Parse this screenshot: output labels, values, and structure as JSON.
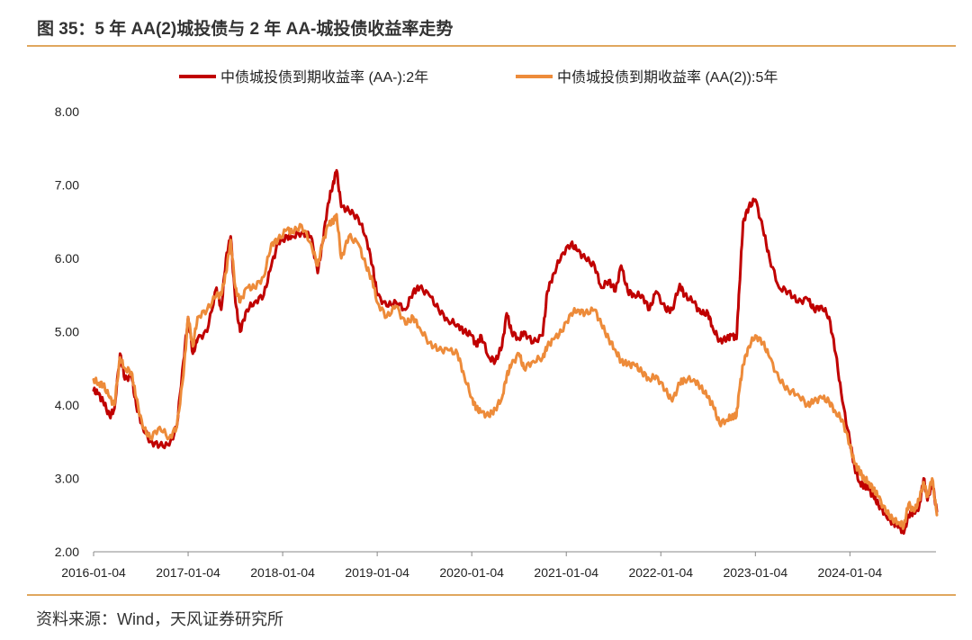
{
  "figure": {
    "title": "图 35：5 年 AA(2)城投债与 2 年 AA-城投债收益率走势",
    "source": "资料来源：Wind，天风证券研究所"
  },
  "colors": {
    "series_2y": "#C00000",
    "series_5y": "#ED8B3A",
    "rule": "#E0A75E",
    "axis": "#888888"
  },
  "chart_data": {
    "type": "line",
    "title": "",
    "xlabel": "",
    "ylabel": "",
    "ylim": [
      2.0,
      8.0
    ],
    "y_ticks": [
      "8.00",
      "7.00",
      "6.00",
      "5.00",
      "4.00",
      "3.00",
      "2.00"
    ],
    "x_ticks": [
      "2016-01-04",
      "2017-01-04",
      "2018-01-04",
      "2019-01-04",
      "2020-01-04",
      "2021-01-04",
      "2022-01-04",
      "2023-01-04",
      "2024-01-04"
    ],
    "x_range": [
      2016.0,
      2024.92
    ],
    "grid": false,
    "legend_position": "top-center",
    "series": [
      {
        "name": "中债城投债到期收益率 (AA-):2年",
        "color": "#C00000",
        "points": [
          [
            2016.0,
            4.2
          ],
          [
            2016.05,
            4.15
          ],
          [
            2016.1,
            4.05
          ],
          [
            2016.17,
            3.85
          ],
          [
            2016.22,
            3.95
          ],
          [
            2016.28,
            4.7
          ],
          [
            2016.33,
            4.35
          ],
          [
            2016.4,
            4.4
          ],
          [
            2016.45,
            4.0
          ],
          [
            2016.52,
            3.7
          ],
          [
            2016.6,
            3.5
          ],
          [
            2016.7,
            3.45
          ],
          [
            2016.8,
            3.45
          ],
          [
            2016.88,
            3.7
          ],
          [
            2016.95,
            4.6
          ],
          [
            2017.0,
            5.2
          ],
          [
            2017.05,
            4.7
          ],
          [
            2017.1,
            4.9
          ],
          [
            2017.2,
            5.0
          ],
          [
            2017.3,
            5.6
          ],
          [
            2017.35,
            5.3
          ],
          [
            2017.4,
            6.0
          ],
          [
            2017.45,
            6.3
          ],
          [
            2017.5,
            5.4
          ],
          [
            2017.55,
            5.0
          ],
          [
            2017.62,
            5.3
          ],
          [
            2017.7,
            5.4
          ],
          [
            2017.8,
            5.5
          ],
          [
            2017.88,
            5.9
          ],
          [
            2017.95,
            6.2
          ],
          [
            2018.05,
            6.3
          ],
          [
            2018.1,
            6.3
          ],
          [
            2018.2,
            6.35
          ],
          [
            2018.3,
            6.3
          ],
          [
            2018.37,
            5.8
          ],
          [
            2018.42,
            6.2
          ],
          [
            2018.48,
            6.75
          ],
          [
            2018.53,
            7.0
          ],
          [
            2018.57,
            7.2
          ],
          [
            2018.62,
            6.7
          ],
          [
            2018.7,
            6.65
          ],
          [
            2018.8,
            6.55
          ],
          [
            2018.88,
            6.3
          ],
          [
            2018.95,
            5.9
          ],
          [
            2019.0,
            5.5
          ],
          [
            2019.1,
            5.35
          ],
          [
            2019.2,
            5.4
          ],
          [
            2019.3,
            5.3
          ],
          [
            2019.38,
            5.55
          ],
          [
            2019.45,
            5.6
          ],
          [
            2019.55,
            5.5
          ],
          [
            2019.65,
            5.3
          ],
          [
            2019.75,
            5.15
          ],
          [
            2019.85,
            5.1
          ],
          [
            2019.92,
            5.0
          ],
          [
            2020.0,
            4.95
          ],
          [
            2020.05,
            4.8
          ],
          [
            2020.1,
            4.95
          ],
          [
            2020.18,
            4.65
          ],
          [
            2020.25,
            4.6
          ],
          [
            2020.32,
            4.8
          ],
          [
            2020.37,
            5.25
          ],
          [
            2020.42,
            5.0
          ],
          [
            2020.5,
            4.9
          ],
          [
            2020.55,
            5.0
          ],
          [
            2020.65,
            4.85
          ],
          [
            2020.75,
            4.95
          ],
          [
            2020.8,
            5.55
          ],
          [
            2020.87,
            5.8
          ],
          [
            2020.95,
            6.05
          ],
          [
            2021.05,
            6.2
          ],
          [
            2021.12,
            6.1
          ],
          [
            2021.2,
            6.0
          ],
          [
            2021.3,
            5.9
          ],
          [
            2021.37,
            5.6
          ],
          [
            2021.45,
            5.7
          ],
          [
            2021.52,
            5.55
          ],
          [
            2021.58,
            5.9
          ],
          [
            2021.65,
            5.55
          ],
          [
            2021.72,
            5.5
          ],
          [
            2021.8,
            5.5
          ],
          [
            2021.88,
            5.3
          ],
          [
            2021.95,
            5.55
          ],
          [
            2022.05,
            5.3
          ],
          [
            2022.12,
            5.3
          ],
          [
            2022.2,
            5.65
          ],
          [
            2022.25,
            5.5
          ],
          [
            2022.35,
            5.4
          ],
          [
            2022.42,
            5.25
          ],
          [
            2022.5,
            5.25
          ],
          [
            2022.55,
            5.05
          ],
          [
            2022.62,
            4.88
          ],
          [
            2022.7,
            4.9
          ],
          [
            2022.75,
            4.95
          ],
          [
            2022.8,
            4.9
          ],
          [
            2022.83,
            5.6
          ],
          [
            2022.87,
            6.5
          ],
          [
            2022.93,
            6.7
          ],
          [
            2023.0,
            6.8
          ],
          [
            2023.08,
            6.4
          ],
          [
            2023.15,
            6.0
          ],
          [
            2023.25,
            5.6
          ],
          [
            2023.35,
            5.55
          ],
          [
            2023.45,
            5.4
          ],
          [
            2023.55,
            5.45
          ],
          [
            2023.62,
            5.3
          ],
          [
            2023.7,
            5.35
          ],
          [
            2023.78,
            5.2
          ],
          [
            2023.85,
            4.7
          ],
          [
            2023.92,
            4.05
          ],
          [
            2024.0,
            3.5
          ],
          [
            2024.05,
            3.15
          ],
          [
            2024.1,
            2.95
          ],
          [
            2024.15,
            2.9
          ],
          [
            2024.2,
            2.85
          ],
          [
            2024.25,
            2.75
          ],
          [
            2024.3,
            2.65
          ],
          [
            2024.38,
            2.5
          ],
          [
            2024.45,
            2.4
          ],
          [
            2024.52,
            2.35
          ],
          [
            2024.57,
            2.25
          ],
          [
            2024.62,
            2.5
          ],
          [
            2024.68,
            2.55
          ],
          [
            2024.73,
            2.6
          ],
          [
            2024.78,
            3.0
          ],
          [
            2024.82,
            2.7
          ],
          [
            2024.87,
            2.95
          ],
          [
            2024.92,
            2.55
          ]
        ]
      },
      {
        "name": "中债城投债到期收益率 (AA(2)):5年",
        "color": "#ED8B3A",
        "points": [
          [
            2016.0,
            4.35
          ],
          [
            2016.05,
            4.3
          ],
          [
            2016.1,
            4.28
          ],
          [
            2016.17,
            4.1
          ],
          [
            2016.22,
            4.0
          ],
          [
            2016.28,
            4.65
          ],
          [
            2016.33,
            4.5
          ],
          [
            2016.4,
            4.45
          ],
          [
            2016.45,
            4.1
          ],
          [
            2016.52,
            3.7
          ],
          [
            2016.6,
            3.55
          ],
          [
            2016.7,
            3.7
          ],
          [
            2016.8,
            3.55
          ],
          [
            2016.88,
            3.7
          ],
          [
            2016.95,
            4.4
          ],
          [
            2017.0,
            5.2
          ],
          [
            2017.05,
            4.8
          ],
          [
            2017.1,
            5.2
          ],
          [
            2017.2,
            5.3
          ],
          [
            2017.3,
            5.5
          ],
          [
            2017.35,
            5.5
          ],
          [
            2017.4,
            5.8
          ],
          [
            2017.45,
            6.25
          ],
          [
            2017.5,
            5.6
          ],
          [
            2017.55,
            5.4
          ],
          [
            2017.62,
            5.6
          ],
          [
            2017.7,
            5.6
          ],
          [
            2017.8,
            5.75
          ],
          [
            2017.88,
            6.2
          ],
          [
            2017.95,
            6.25
          ],
          [
            2018.05,
            6.4
          ],
          [
            2018.1,
            6.35
          ],
          [
            2018.2,
            6.45
          ],
          [
            2018.3,
            6.2
          ],
          [
            2018.37,
            5.9
          ],
          [
            2018.42,
            6.2
          ],
          [
            2018.48,
            6.45
          ],
          [
            2018.53,
            6.5
          ],
          [
            2018.57,
            6.6
          ],
          [
            2018.62,
            6.0
          ],
          [
            2018.7,
            6.3
          ],
          [
            2018.8,
            6.2
          ],
          [
            2018.88,
            5.9
          ],
          [
            2018.95,
            5.7
          ],
          [
            2019.0,
            5.4
          ],
          [
            2019.1,
            5.2
          ],
          [
            2019.2,
            5.35
          ],
          [
            2019.3,
            5.1
          ],
          [
            2019.38,
            5.2
          ],
          [
            2019.45,
            5.05
          ],
          [
            2019.55,
            4.85
          ],
          [
            2019.65,
            4.75
          ],
          [
            2019.75,
            4.75
          ],
          [
            2019.85,
            4.7
          ],
          [
            2019.92,
            4.4
          ],
          [
            2020.0,
            4.1
          ],
          [
            2020.05,
            3.95
          ],
          [
            2020.1,
            3.9
          ],
          [
            2020.18,
            3.85
          ],
          [
            2020.25,
            3.95
          ],
          [
            2020.32,
            4.1
          ],
          [
            2020.37,
            4.4
          ],
          [
            2020.42,
            4.55
          ],
          [
            2020.5,
            4.7
          ],
          [
            2020.55,
            4.5
          ],
          [
            2020.65,
            4.6
          ],
          [
            2020.75,
            4.65
          ],
          [
            2020.8,
            4.8
          ],
          [
            2020.87,
            4.9
          ],
          [
            2020.95,
            5.0
          ],
          [
            2021.05,
            5.25
          ],
          [
            2021.12,
            5.3
          ],
          [
            2021.2,
            5.25
          ],
          [
            2021.3,
            5.3
          ],
          [
            2021.37,
            5.1
          ],
          [
            2021.45,
            4.9
          ],
          [
            2021.52,
            4.75
          ],
          [
            2021.58,
            4.6
          ],
          [
            2021.65,
            4.55
          ],
          [
            2021.72,
            4.55
          ],
          [
            2021.8,
            4.45
          ],
          [
            2021.88,
            4.35
          ],
          [
            2021.95,
            4.4
          ],
          [
            2022.05,
            4.2
          ],
          [
            2022.12,
            4.05
          ],
          [
            2022.2,
            4.3
          ],
          [
            2022.25,
            4.35
          ],
          [
            2022.35,
            4.35
          ],
          [
            2022.42,
            4.25
          ],
          [
            2022.5,
            4.1
          ],
          [
            2022.55,
            4.0
          ],
          [
            2022.62,
            3.75
          ],
          [
            2022.7,
            3.8
          ],
          [
            2022.75,
            3.85
          ],
          [
            2022.8,
            3.85
          ],
          [
            2022.83,
            4.2
          ],
          [
            2022.87,
            4.55
          ],
          [
            2022.93,
            4.8
          ],
          [
            2023.0,
            4.95
          ],
          [
            2023.08,
            4.85
          ],
          [
            2023.15,
            4.65
          ],
          [
            2023.25,
            4.35
          ],
          [
            2023.35,
            4.2
          ],
          [
            2023.45,
            4.15
          ],
          [
            2023.55,
            4.0
          ],
          [
            2023.62,
            4.05
          ],
          [
            2023.7,
            4.1
          ],
          [
            2023.78,
            4.05
          ],
          [
            2023.85,
            3.9
          ],
          [
            2023.92,
            3.8
          ],
          [
            2024.0,
            3.45
          ],
          [
            2024.05,
            3.2
          ],
          [
            2024.1,
            3.1
          ],
          [
            2024.15,
            3.0
          ],
          [
            2024.2,
            2.95
          ],
          [
            2024.25,
            2.85
          ],
          [
            2024.3,
            2.75
          ],
          [
            2024.38,
            2.55
          ],
          [
            2024.45,
            2.45
          ],
          [
            2024.52,
            2.4
          ],
          [
            2024.57,
            2.35
          ],
          [
            2024.62,
            2.65
          ],
          [
            2024.68,
            2.55
          ],
          [
            2024.73,
            2.7
          ],
          [
            2024.78,
            2.95
          ],
          [
            2024.82,
            2.75
          ],
          [
            2024.87,
            3.0
          ],
          [
            2024.92,
            2.5
          ]
        ]
      }
    ]
  }
}
